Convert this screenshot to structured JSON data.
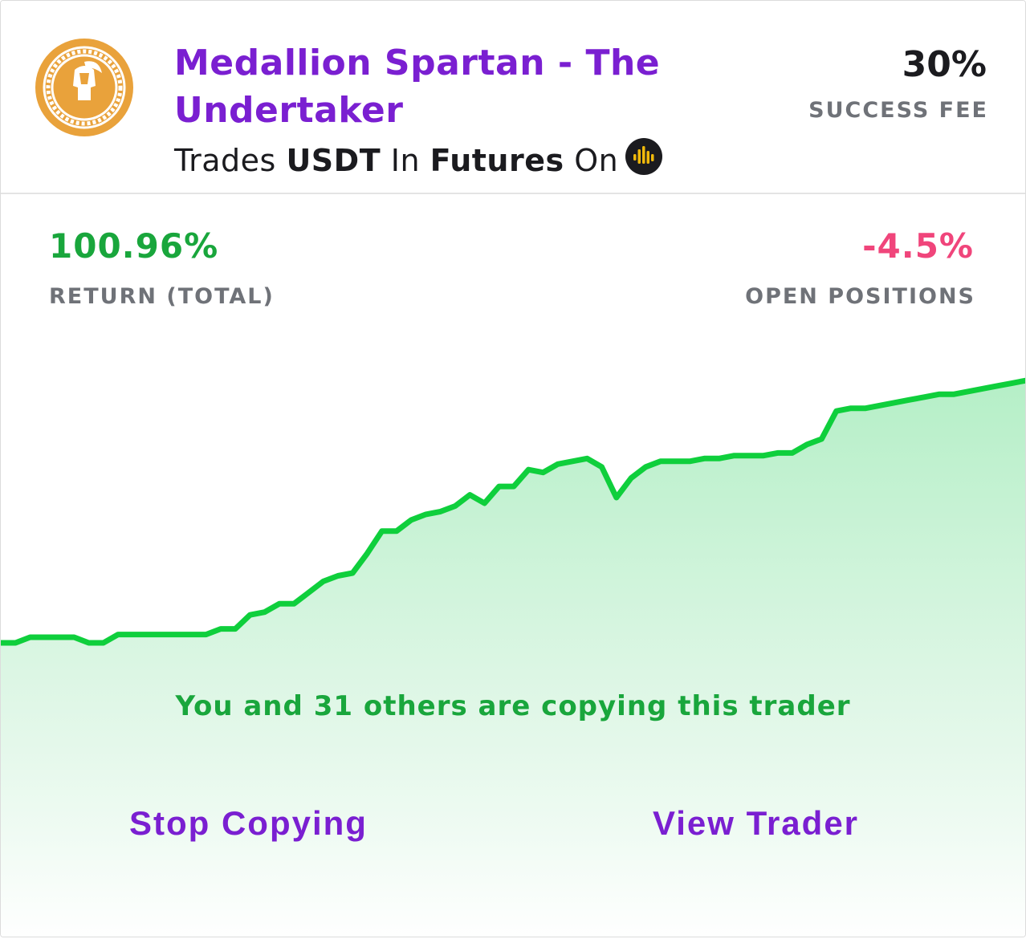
{
  "trader": {
    "name": "Medallion Spartan - The Undertaker",
    "avatar_icon": "spartan-helmet-medallion-icon",
    "trades_prefix": "Trades",
    "asset": "USDT",
    "in_word": "In",
    "market": "Futures",
    "on_word": "On",
    "exchange_icon": "exchange-logo-icon"
  },
  "fee": {
    "value": "30%",
    "label": "SUCCESS FEE"
  },
  "stats": {
    "return_value": "100.96%",
    "return_label": "RETURN (TOTAL)",
    "open_value": "-4.5%",
    "open_label": "OPEN POSITIONS"
  },
  "copy_note": "You and 31 others are copying this trader",
  "actions": {
    "stop_label": "Stop Copying",
    "view_label": "View Trader"
  },
  "colors": {
    "accent_purple": "#7a1fd1",
    "positive_green": "#19a63c",
    "line_green": "#0fcf3c",
    "negative_pink": "#f0457b",
    "medallion_gold": "#e9a23b"
  },
  "chart_data": {
    "type": "area",
    "values": [
      0.0,
      0.0,
      0.02,
      0.02,
      0.02,
      0.02,
      0.0,
      0.0,
      0.03,
      0.03,
      0.03,
      0.03,
      0.03,
      0.03,
      0.03,
      0.05,
      0.05,
      0.1,
      0.11,
      0.14,
      0.14,
      0.18,
      0.22,
      0.24,
      0.25,
      0.32,
      0.4,
      0.4,
      0.44,
      0.46,
      0.47,
      0.49,
      0.53,
      0.5,
      0.56,
      0.56,
      0.62,
      0.61,
      0.64,
      0.65,
      0.66,
      0.63,
      0.52,
      0.59,
      0.63,
      0.65,
      0.65,
      0.65,
      0.66,
      0.66,
      0.67,
      0.67,
      0.67,
      0.68,
      0.68,
      0.71,
      0.73,
      0.83,
      0.84,
      0.84,
      0.85,
      0.86,
      0.87,
      0.88,
      0.89,
      0.89,
      0.9,
      0.91,
      0.92,
      0.93,
      0.94
    ],
    "grid": false,
    "legend": "none"
  }
}
